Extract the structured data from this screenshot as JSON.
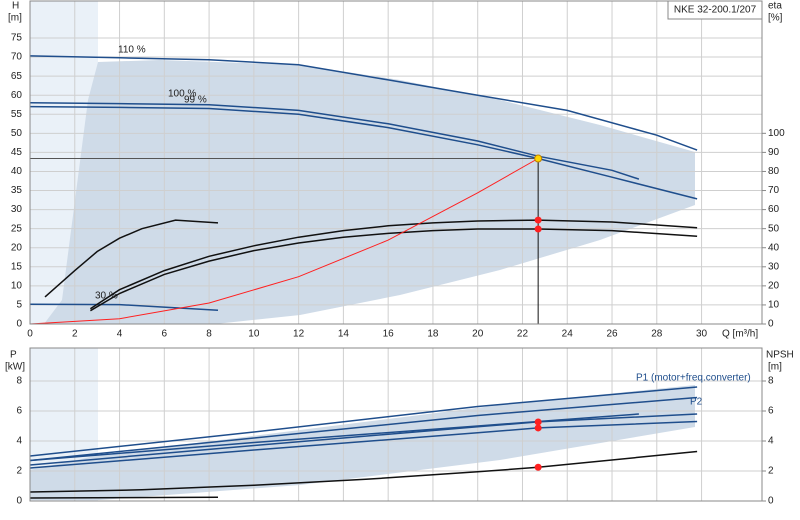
{
  "chart_data": [
    {
      "type": "line",
      "title": "NKE 32-200.1/207",
      "y_label": "H",
      "y_unit": "[m]",
      "y2_label": "eta",
      "y2_unit": "[%]",
      "x_label": "Q [m³/h]",
      "xlim": [
        0,
        32.7
      ],
      "xticks": [
        0,
        2,
        4,
        6,
        8,
        10,
        12,
        14,
        16,
        18,
        20,
        22,
        24,
        26,
        28,
        30
      ],
      "ylim": [
        0,
        84.7
      ],
      "yticks": [
        0,
        5,
        10,
        15,
        20,
        25,
        30,
        35,
        40,
        45,
        50,
        55,
        60,
        65,
        70,
        75
      ],
      "y2lim": [
        0,
        169.4
      ],
      "y2ticks": [
        0,
        10,
        20,
        30,
        40,
        50,
        60,
        70,
        80,
        90,
        100
      ],
      "grid": true,
      "series": [
        {
          "name": "110 %",
          "color": "#1f4e8c",
          "x": [
            0,
            4,
            8,
            12,
            16,
            20,
            24,
            28,
            29.8
          ],
          "values": [
            70.3,
            69.8,
            69.3,
            68,
            64,
            60,
            56,
            49.5,
            45.6
          ]
        },
        {
          "name": "100 %",
          "color": "#1f4e8c",
          "x": [
            0,
            4,
            8,
            12,
            16,
            20,
            22.7,
            26,
            27.2
          ],
          "values": [
            58,
            57.8,
            57.5,
            56,
            52.5,
            48,
            44,
            40.3,
            38
          ]
        },
        {
          "name": "99 %",
          "color": "#1f4e8c",
          "x": [
            0,
            4,
            8,
            12,
            16,
            20,
            22.7,
            26,
            29.8
          ],
          "values": [
            57,
            56.8,
            56.5,
            55,
            51.5,
            47,
            43.4,
            38.5,
            32.8
          ]
        },
        {
          "name": "30 %",
          "color": "#1f4e8c",
          "x": [
            0,
            4,
            8.4
          ],
          "values": [
            5.2,
            5.1,
            3.6
          ]
        },
        {
          "color": "#111111",
          "axis": "y2",
          "x": [
            2.7,
            4,
            6,
            8,
            10,
            12,
            14,
            16,
            18,
            20,
            22.7,
            26,
            29.8
          ],
          "values": [
            7,
            16,
            26,
            33,
            38.5,
            42.5,
            45.5,
            47.5,
            49,
            49.8,
            49.8,
            49,
            46
          ]
        },
        {
          "color": "#111111",
          "axis": "y2",
          "x": [
            2.7,
            4,
            6,
            8,
            10,
            12,
            14,
            16,
            18,
            20,
            22.7,
            26,
            29.8
          ],
          "values": [
            8,
            18,
            28,
            35.5,
            41,
            45.5,
            49,
            51.5,
            53,
            54,
            54.5,
            53.5,
            50.5
          ]
        },
        {
          "color": "#111111",
          "axis": "y2",
          "x": [
            0.67,
            2,
            3,
            4,
            5,
            6.5,
            8.4
          ],
          "values": [
            14.2,
            28,
            38,
            45,
            50,
            54.5,
            53
          ]
        },
        {
          "color": "#ff2020",
          "x": [
            0,
            4,
            8,
            12,
            16,
            20,
            22.7
          ],
          "values": [
            0,
            1.4,
            5.5,
            12.4,
            22,
            34.4,
            43.4
          ]
        }
      ],
      "points": [
        {
          "x": 22.7,
          "y": 43.4,
          "color": "#ffd700"
        },
        {
          "x": 22.7,
          "y": 54.5,
          "color": "#ff2020",
          "axis": "y2"
        },
        {
          "x": 22.7,
          "y": 49.8,
          "color": "#ff2020",
          "axis": "y2"
        }
      ]
    },
    {
      "type": "line",
      "y_label": "P",
      "y_unit": "[kW]",
      "y2_label": "NPSH",
      "y2_unit": "[m]",
      "xlim": [
        0,
        32.7
      ],
      "xticks": [
        0,
        2,
        4,
        6,
        8,
        10,
        12,
        14,
        16,
        18,
        20,
        22,
        24,
        26,
        28,
        30
      ],
      "ylim": [
        0,
        10.2
      ],
      "yticks": [
        0,
        2,
        4,
        6,
        8
      ],
      "y2lim": [
        0,
        10.2
      ],
      "y2ticks": [
        0,
        2,
        4,
        6,
        8
      ],
      "grid": true,
      "annotations": [
        "P1 (motor+freq.converter)",
        "P2"
      ],
      "series": [
        {
          "color": "#1f4e8c",
          "x": [
            0,
            10,
            20,
            29.8
          ],
          "values": [
            3.0,
            4.6,
            6.3,
            7.6
          ]
        },
        {
          "color": "#1f4e8c",
          "x": [
            0,
            10,
            20,
            27.2
          ],
          "values": [
            2.7,
            3.9,
            5.0,
            5.8
          ]
        },
        {
          "color": "#1f4e8c",
          "x": [
            0,
            10,
            20,
            22.7,
            29.8
          ],
          "values": [
            2.4,
            3.7,
            4.95,
            5.27,
            5.8
          ]
        },
        {
          "color": "#1f4e8c",
          "x": [
            0,
            10,
            20,
            22.7,
            29.8
          ],
          "values": [
            2.2,
            3.4,
            4.55,
            4.87,
            5.3
          ]
        },
        {
          "color": "#1f4e8c",
          "x": [
            0,
            10,
            20,
            29.8
          ],
          "values": [
            2.7,
            4.2,
            5.7,
            6.9
          ]
        },
        {
          "color": "#111111",
          "axis": "y2",
          "x": [
            0,
            5,
            10,
            15,
            20,
            22.7,
            29.8
          ],
          "values": [
            0.6,
            0.75,
            1.05,
            1.45,
            1.95,
            2.25,
            3.3
          ]
        },
        {
          "color": "#111111",
          "axis": "y2",
          "x": [
            0,
            8.4
          ],
          "values": [
            0.2,
            0.25
          ]
        }
      ],
      "points": [
        {
          "x": 22.7,
          "y": 5.27,
          "color": "#ff2020"
        },
        {
          "x": 22.7,
          "y": 4.87,
          "color": "#ff2020"
        },
        {
          "x": 22.7,
          "y": 2.25,
          "color": "#ff2020",
          "axis": "y2"
        }
      ]
    }
  ]
}
